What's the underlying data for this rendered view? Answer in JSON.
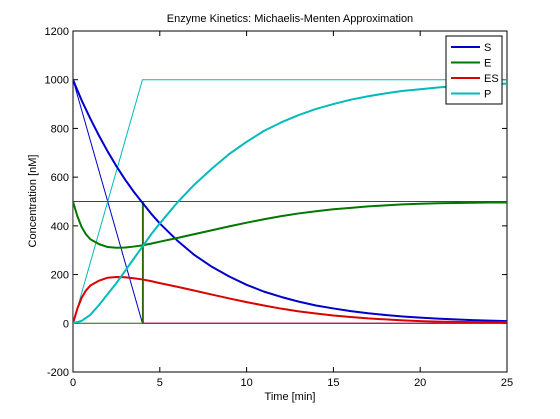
{
  "chart_data": {
    "type": "line",
    "title": "Enzyme Kinetics: Michaelis-Menten Approximation",
    "xlabel": "Time [min]",
    "ylabel": "Concentration [nM]",
    "xlim": [
      0,
      25
    ],
    "ylim": [
      -200,
      1200
    ],
    "xticks": [
      0,
      5,
      10,
      15,
      20,
      25
    ],
    "yticks": [
      -200,
      0,
      200,
      400,
      600,
      800,
      1000,
      1200
    ],
    "grid": false,
    "legend_position": "top-right",
    "series": [
      {
        "name": "S",
        "color": "#0000cc",
        "x": [
          0,
          0.5,
          1,
          1.5,
          2,
          2.5,
          3,
          3.5,
          4,
          4.5,
          5,
          6,
          7,
          8,
          9,
          10,
          11,
          12,
          13,
          14,
          15,
          16,
          17,
          18,
          19,
          20,
          21,
          22,
          23,
          24,
          25
        ],
        "y": [
          1000,
          915,
          840,
          770,
          705,
          645,
          590,
          540,
          495,
          450,
          410,
          340,
          280,
          232,
          192,
          158,
          130,
          108,
          89,
          73,
          61,
          50,
          41,
          34,
          28,
          23,
          19,
          16,
          13,
          11,
          9
        ]
      },
      {
        "name": "E",
        "color": "#007700",
        "x": [
          0,
          0.25,
          0.5,
          0.75,
          1,
          1.5,
          2,
          2.5,
          3,
          3.5,
          4,
          4.5,
          5,
          6,
          7,
          8,
          9,
          10,
          11,
          12,
          13,
          14,
          15,
          16,
          17,
          18,
          19,
          20,
          21,
          22,
          23,
          24,
          25
        ],
        "y": [
          500,
          440,
          395,
          365,
          345,
          325,
          313,
          310,
          311,
          315,
          320,
          327,
          335,
          350,
          366,
          382,
          398,
          413,
          427,
          440,
          451,
          460,
          468,
          474,
          480,
          484,
          488,
          491,
          493,
          494,
          495,
          496,
          496
        ]
      },
      {
        "name": "ES",
        "color": "#dd0000",
        "x": [
          0,
          0.25,
          0.5,
          0.75,
          1,
          1.5,
          2,
          2.5,
          3,
          3.5,
          4,
          4.5,
          5,
          6,
          7,
          8,
          9,
          10,
          11,
          12,
          13,
          14,
          15,
          16,
          17,
          18,
          19,
          20,
          21,
          22,
          23,
          24,
          25
        ],
        "y": [
          0,
          60,
          105,
          135,
          155,
          175,
          187,
          190,
          189,
          185,
          180,
          173,
          165,
          150,
          134,
          118,
          102,
          87,
          73,
          60,
          49,
          40,
          32,
          26,
          20,
          16,
          12,
          9,
          7,
          6,
          5,
          4,
          4
        ]
      },
      {
        "name": "P",
        "color": "#00bbbb",
        "x": [
          0,
          0.5,
          1,
          1.5,
          2,
          2.5,
          3,
          3.5,
          4,
          4.5,
          5,
          6,
          7,
          8,
          9,
          10,
          11,
          12,
          13,
          14,
          15,
          16,
          17,
          18,
          19,
          20,
          21,
          22,
          23,
          24,
          25
        ],
        "y": [
          0,
          10,
          35,
          75,
          120,
          165,
          215,
          265,
          315,
          365,
          410,
          495,
          570,
          635,
          695,
          745,
          790,
          825,
          855,
          880,
          900,
          918,
          932,
          944,
          954,
          961,
          968,
          973,
          977,
          981,
          984
        ]
      }
    ],
    "approximation_lines": [
      {
        "color": "#0000cc",
        "x": [
          0,
          4
        ],
        "y": [
          1000,
          0
        ],
        "tail_y": 0
      },
      {
        "color": "#00bbbb",
        "x": [
          0,
          4
        ],
        "y": [
          0,
          1000
        ],
        "tail_y": 1000
      },
      {
        "color": "#007700",
        "x": [
          0,
          4,
          4
        ],
        "y": [
          0,
          0,
          500
        ],
        "tail_y": 500
      },
      {
        "color": "#dd0000",
        "x": [
          0,
          0,
          4.05,
          4.05
        ],
        "y": [
          0,
          500,
          500,
          0
        ],
        "tail_y": 0
      }
    ]
  }
}
